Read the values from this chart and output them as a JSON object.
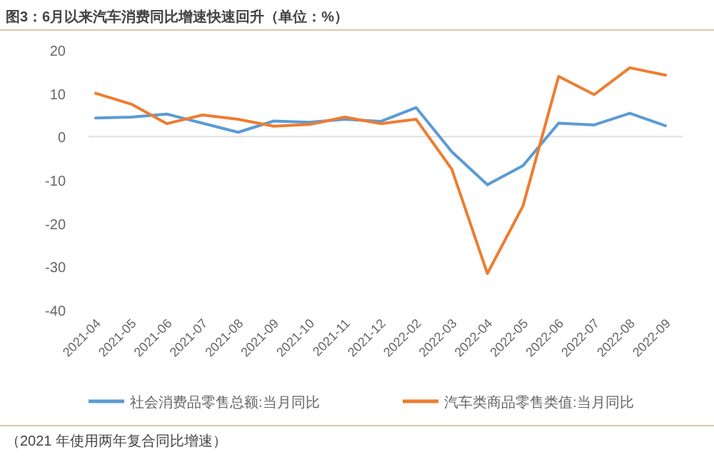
{
  "chart_data": {
    "type": "line",
    "title": "图3：6月以来汽车消费同比增速快速回升（单位：%）",
    "categories": [
      "2021-04",
      "2021-05",
      "2021-06",
      "2021-07",
      "2021-08",
      "2021-09",
      "2021-10",
      "2021-11",
      "2021-12",
      "2022-02",
      "2022-03",
      "2022-04",
      "2022-05",
      "2022-06",
      "2022-07",
      "2022-08",
      "2022-09"
    ],
    "series": [
      {
        "name": "社会消费品零售总额:当月同比",
        "color": "#5b9bd5",
        "values": [
          4.3,
          4.5,
          5.2,
          3.1,
          1.0,
          3.6,
          3.3,
          4.0,
          3.5,
          6.7,
          -3.5,
          -11.1,
          -6.7,
          3.1,
          2.7,
          5.4,
          2.5
        ]
      },
      {
        "name": "汽车类商品零售类值:当月同比",
        "color": "#ed7d31",
        "values": [
          10.0,
          7.5,
          3.0,
          5.0,
          4.0,
          2.4,
          2.8,
          4.5,
          3.0,
          4.0,
          -7.5,
          -31.6,
          -16.0,
          13.9,
          9.7,
          15.9,
          14.2
        ]
      }
    ],
    "ylim": [
      -40,
      20
    ],
    "yticks": [
      -40,
      -30,
      -20,
      -10,
      0,
      10,
      20
    ],
    "grid": false,
    "ref_lines": [
      {
        "axis": "y",
        "value": 0,
        "color": "#e0e0e0"
      }
    ],
    "legend": "bottom",
    "marker": "none",
    "line_style": "solid",
    "annotations": [
      "（2021 年使用两年复合同比增速）"
    ]
  }
}
